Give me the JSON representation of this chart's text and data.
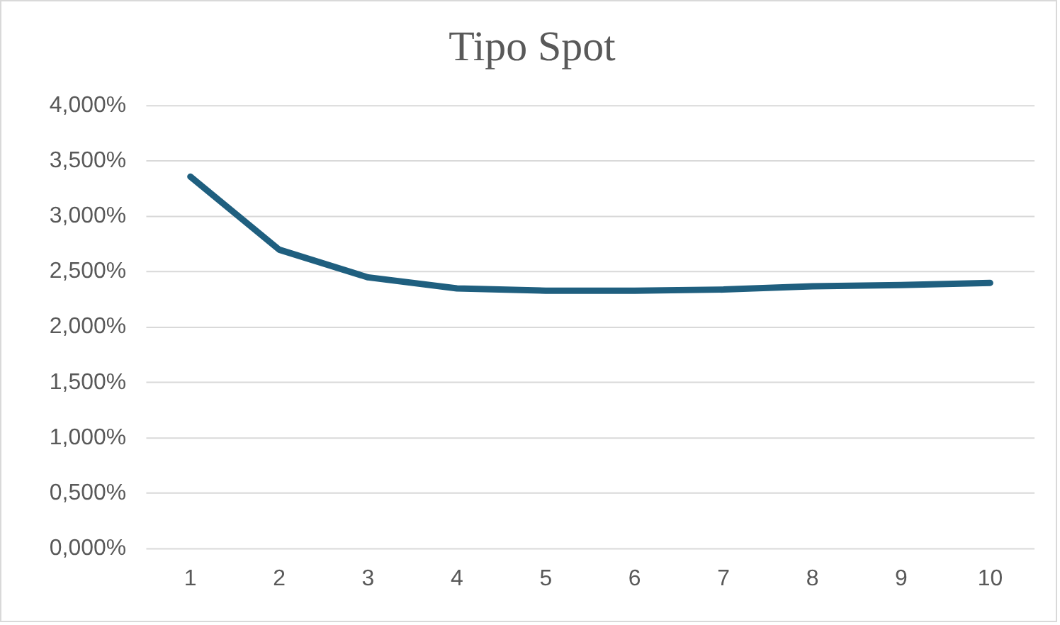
{
  "chart_data": {
    "type": "line",
    "title": "Tipo Spot",
    "categories": [
      "1",
      "2",
      "3",
      "4",
      "5",
      "6",
      "7",
      "8",
      "9",
      "10"
    ],
    "series": [
      {
        "color": "#1f5f7f",
        "values": [
          3.36,
          2.7,
          2.45,
          2.35,
          2.33,
          2.33,
          2.34,
          2.37,
          2.38,
          2.4
        ]
      }
    ],
    "ylim": [
      0,
      4
    ],
    "yticks": [
      {
        "value": 0,
        "label": "0,000%"
      },
      {
        "value": 0.5,
        "label": "0,500%"
      },
      {
        "value": 1,
        "label": "1,000%"
      },
      {
        "value": 1.5,
        "label": "1,500%"
      },
      {
        "value": 2,
        "label": "2,000%"
      },
      {
        "value": 2.5,
        "label": "2,500%"
      },
      {
        "value": 3,
        "label": "3,000%"
      },
      {
        "value": 3.5,
        "label": "3,500%"
      },
      {
        "value": 4,
        "label": "4,000%"
      }
    ],
    "grid": "y",
    "legend": false,
    "marker": "none",
    "line_style": "solid"
  }
}
